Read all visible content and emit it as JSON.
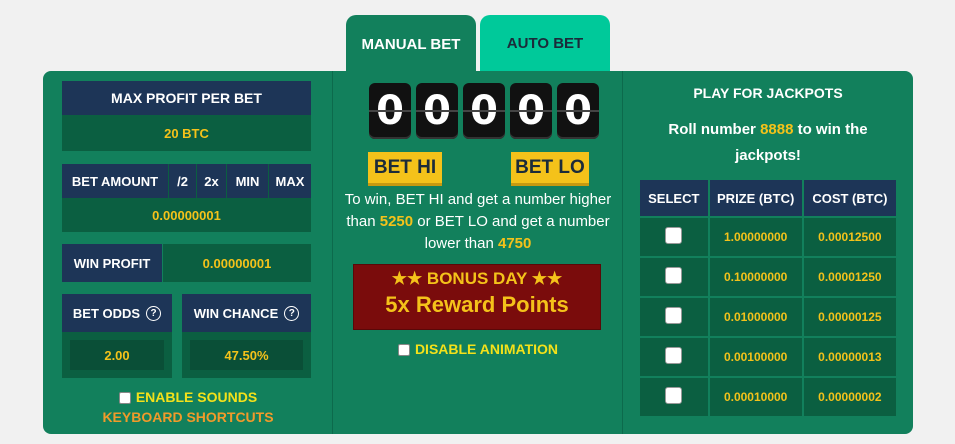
{
  "tabs": {
    "manual": "MANUAL BET",
    "auto": "AUTO BET"
  },
  "left": {
    "max_profit_label": "MAX PROFIT PER BET",
    "max_profit_value": "20 BTC",
    "bet_amount_label": "BET AMOUNT",
    "half_label": "/2",
    "double_label": "2x",
    "min_label": "MIN",
    "max_label": "MAX",
    "bet_amount_value": "0.00000001",
    "win_profit_label": "WIN PROFIT",
    "win_profit_value": "0.00000001",
    "bet_odds_label": "BET ODDS",
    "bet_odds_value": "2.00",
    "win_chance_label": "WIN CHANCE",
    "win_chance_value": "47.50%",
    "help_glyph": "?",
    "enable_sounds": "ENABLE SOUNDS",
    "keyboard_shortcuts": "KEYBOARD SHORTCUTS"
  },
  "mid": {
    "digits": [
      "0",
      "0",
      "0",
      "0",
      "0"
    ],
    "bet_hi": "BET HI",
    "bet_lo": "BET LO",
    "info_1": "To win, BET HI and get a number higher than",
    "hi_number": "5250",
    "info_2": "or BET LO and get a number lower than",
    "lo_number": "4750",
    "bonus_title": "BONUS DAY",
    "bonus_reward": "5x Reward Points",
    "stars": "★★",
    "disable_animation": "DISABLE ANIMATION"
  },
  "right": {
    "title": "PLAY FOR JACKPOTS",
    "desc_1": "Roll number",
    "jackpot_number": "8888",
    "desc_2": "to win the jackpots!",
    "headers": [
      "SELECT",
      "PRIZE (BTC)",
      "COST (BTC)"
    ],
    "rows": [
      {
        "prize": "1.00000000",
        "cost": "0.00012500"
      },
      {
        "prize": "0.10000000",
        "cost": "0.00001250"
      },
      {
        "prize": "0.01000000",
        "cost": "0.00000125"
      },
      {
        "prize": "0.00100000",
        "cost": "0.00000013"
      },
      {
        "prize": "0.00010000",
        "cost": "0.00000002"
      }
    ]
  },
  "colors": {
    "panel": "#12805c",
    "navy": "#1d3557",
    "accent": "#f4c21a",
    "bonus": "#7a0c0c",
    "auto_tab": "#00c99a"
  }
}
